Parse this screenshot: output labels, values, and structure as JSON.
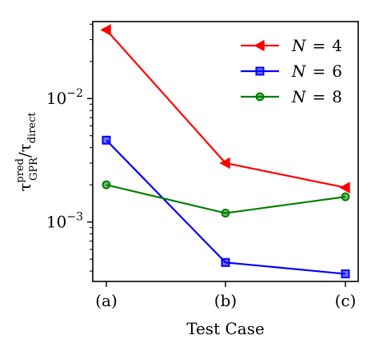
{
  "chart_data": {
    "type": "line",
    "categories": [
      "(a)",
      "(b)",
      "(c)"
    ],
    "xlabel": "Test Case",
    "ylabel": {
      "base": "τ",
      "sup": "pred",
      "sub": "GPR",
      "sep": "/",
      "base2": "τ",
      "sub2": "direct"
    },
    "yscale": "log",
    "ylim": [
      0.00033,
      0.042
    ],
    "y_ticks": [
      {
        "value": 0.01,
        "base": "10",
        "exp": "−2"
      },
      {
        "value": 0.001,
        "base": "10",
        "exp": "−3"
      }
    ],
    "grid": false,
    "legend_position": "top-right",
    "series": [
      {
        "name_var": "N",
        "name_eq": "=",
        "name_val": "4",
        "color": "#ff0000",
        "marker": "triangle-left",
        "values": [
          0.036,
          0.003,
          0.0019
        ]
      },
      {
        "name_var": "N",
        "name_eq": "=",
        "name_val": "6",
        "color": "#0000ff",
        "marker": "square",
        "values": [
          0.0046,
          0.00047,
          0.00038
        ]
      },
      {
        "name_var": "N",
        "name_eq": "=",
        "name_val": "8",
        "color": "#007f00",
        "marker": "circle",
        "values": [
          0.002,
          0.00118,
          0.0016
        ]
      }
    ]
  }
}
